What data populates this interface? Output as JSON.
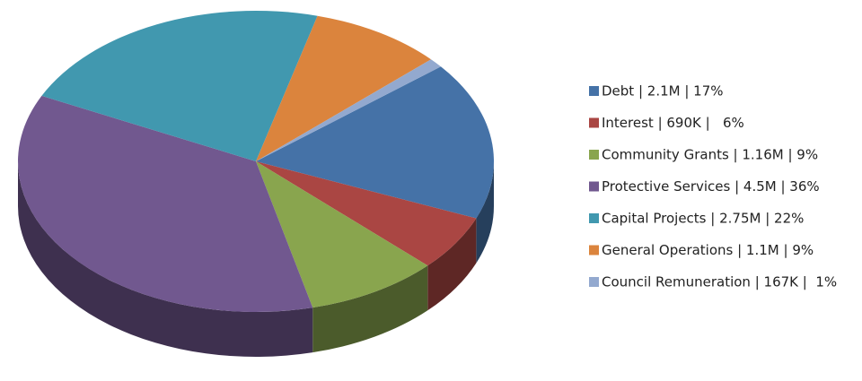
{
  "chart_data": {
    "type": "pie3d",
    "categories": [
      "Debt | 2.1M | 17%",
      "Interest | 690K |   6%",
      "Community Grants | 1.16M | 9%",
      "Protective Services | 4.5M | 36%",
      "Capital Projects | 2.75M | 22%",
      "General Operations | 1.1M | 9%",
      "Council Remuneration | 167K |  1%"
    ],
    "values": [
      17,
      6,
      9,
      36,
      22,
      9,
      1
    ],
    "colors": [
      "#4572a7",
      "#aa4643",
      "#89a54e",
      "#71588f",
      "#4198af",
      "#db843d",
      "#93a9cf"
    ],
    "legend": "right"
  }
}
